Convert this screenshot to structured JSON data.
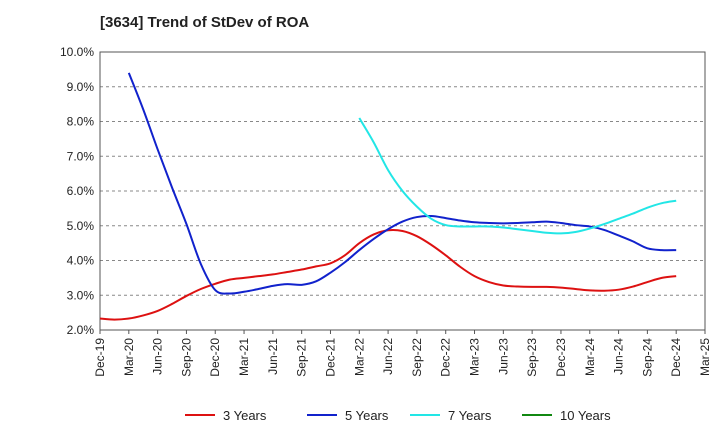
{
  "chart_data": {
    "type": "line",
    "title": "[3634]  Trend of StDev of ROA",
    "xlabel": "",
    "ylabel": "",
    "x_categories": [
      "Dec-19",
      "Mar-20",
      "Jun-20",
      "Sep-20",
      "Dec-20",
      "Mar-21",
      "Jun-21",
      "Sep-21",
      "Dec-21",
      "Mar-22",
      "Jun-22",
      "Sep-22",
      "Dec-22",
      "Mar-23",
      "Jun-23",
      "Sep-23",
      "Dec-23",
      "Mar-24",
      "Jun-24",
      "Sep-24",
      "Dec-24",
      "Mar-25"
    ],
    "y_ticks": [
      "10.0%",
      "9.0%",
      "8.0%",
      "7.0%",
      "6.0%",
      "5.0%",
      "4.0%",
      "3.0%",
      "2.0%"
    ],
    "ylim": [
      2.0,
      10.0
    ],
    "grid": "horizontal dashed",
    "legend_position": "bottom",
    "series": [
      {
        "name": "3 Years",
        "color": "#dd1111",
        "x": [
          0,
          0.5,
          1,
          1.5,
          2,
          2.5,
          3,
          3.5,
          4,
          4.5,
          5,
          5.5,
          6,
          6.5,
          7,
          7.5,
          8,
          8.5,
          9,
          9.5,
          10,
          10.5,
          11,
          11.5,
          12,
          12.5,
          13,
          13.5,
          14,
          14.5,
          15,
          15.5,
          16,
          16.5,
          17,
          17.5,
          18,
          18.5,
          19,
          19.5,
          20
        ],
        "values": [
          2.33,
          2.3,
          2.33,
          2.42,
          2.55,
          2.75,
          2.98,
          3.18,
          3.33,
          3.45,
          3.5,
          3.55,
          3.6,
          3.67,
          3.74,
          3.83,
          3.92,
          4.15,
          4.5,
          4.75,
          4.87,
          4.85,
          4.7,
          4.45,
          4.15,
          3.82,
          3.55,
          3.38,
          3.28,
          3.25,
          3.24,
          3.24,
          3.22,
          3.18,
          3.14,
          3.13,
          3.16,
          3.25,
          3.38,
          3.5,
          3.55
        ]
      },
      {
        "name": "5 Years",
        "color": "#1122cc",
        "x": [
          1,
          1.5,
          2,
          2.5,
          3,
          3.5,
          4,
          4.5,
          5,
          5.5,
          6,
          6.5,
          7,
          7.5,
          8,
          8.5,
          9,
          9.5,
          10,
          10.5,
          11,
          11.5,
          12,
          12.5,
          13,
          13.5,
          14,
          14.5,
          15,
          15.5,
          16,
          16.5,
          17,
          17.5,
          18,
          18.5,
          19,
          19.5,
          20
        ],
        "values": [
          9.4,
          8.35,
          7.2,
          6.1,
          5.05,
          3.9,
          3.15,
          3.05,
          3.1,
          3.18,
          3.27,
          3.32,
          3.3,
          3.4,
          3.65,
          3.95,
          4.3,
          4.62,
          4.9,
          5.12,
          5.25,
          5.28,
          5.22,
          5.15,
          5.1,
          5.08,
          5.07,
          5.08,
          5.1,
          5.12,
          5.08,
          5.02,
          4.98,
          4.88,
          4.72,
          4.55,
          4.35,
          4.3,
          4.3
        ]
      },
      {
        "name": "7 Years",
        "color": "#22e6e6",
        "x": [
          9,
          9.5,
          10,
          10.5,
          11,
          11.5,
          12,
          12.5,
          13,
          13.5,
          14,
          14.5,
          15,
          15.5,
          16,
          16.5,
          17,
          17.5,
          18,
          18.5,
          19,
          19.5,
          20
        ],
        "values": [
          8.1,
          7.4,
          6.6,
          6.0,
          5.55,
          5.2,
          5.02,
          4.98,
          4.98,
          4.98,
          4.95,
          4.9,
          4.85,
          4.8,
          4.78,
          4.82,
          4.92,
          5.05,
          5.2,
          5.35,
          5.52,
          5.65,
          5.72
        ]
      },
      {
        "name": "10 Years",
        "color": "#118811",
        "x": [],
        "values": []
      }
    ]
  }
}
